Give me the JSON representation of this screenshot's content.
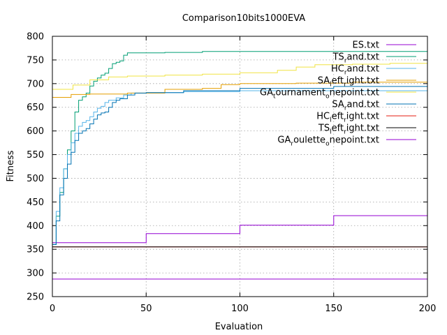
{
  "chart_data": {
    "type": "line",
    "title": "Comparison10bits1000EVA",
    "xlabel": "Evaluation",
    "ylabel": "Fitness",
    "xlim": [
      0,
      200
    ],
    "ylim": [
      250,
      800
    ],
    "xticks": [
      0,
      50,
      100,
      150,
      200
    ],
    "yticks": [
      250,
      300,
      350,
      400,
      450,
      500,
      550,
      600,
      650,
      700,
      750,
      800
    ],
    "grid": true,
    "legend_position": "top-right",
    "series": [
      {
        "name": "ES.txt",
        "color": "#9400d3",
        "points": [
          [
            0,
            364
          ],
          [
            50,
            383
          ],
          [
            100,
            401
          ],
          [
            150,
            421
          ],
          [
            200,
            441
          ]
        ]
      },
      {
        "name": "TS_rand.txt",
        "color": "#009e73",
        "points": [
          [
            0,
            360
          ],
          [
            2,
            420
          ],
          [
            4,
            470
          ],
          [
            6,
            520
          ],
          [
            8,
            560
          ],
          [
            10,
            600
          ],
          [
            12,
            640
          ],
          [
            14,
            665
          ],
          [
            16,
            672
          ],
          [
            18,
            680
          ],
          [
            20,
            695
          ],
          [
            22,
            705
          ],
          [
            24,
            712
          ],
          [
            26,
            718
          ],
          [
            28,
            722
          ],
          [
            30,
            732
          ],
          [
            32,
            742
          ],
          [
            34,
            745
          ],
          [
            36,
            748
          ],
          [
            38,
            760
          ],
          [
            40,
            765
          ],
          [
            60,
            766
          ],
          [
            80,
            768
          ],
          [
            200,
            768
          ]
        ]
      },
      {
        "name": "HC_rand.txt",
        "color": "#56b4e9",
        "points": [
          [
            0,
            360
          ],
          [
            2,
            430
          ],
          [
            4,
            480
          ],
          [
            6,
            520
          ],
          [
            8,
            550
          ],
          [
            10,
            575
          ],
          [
            12,
            595
          ],
          [
            14,
            610
          ],
          [
            16,
            618
          ],
          [
            18,
            622
          ],
          [
            20,
            630
          ],
          [
            22,
            640
          ],
          [
            24,
            648
          ],
          [
            26,
            652
          ],
          [
            28,
            660
          ],
          [
            30,
            665
          ],
          [
            34,
            670
          ],
          [
            38,
            676
          ],
          [
            42,
            680
          ],
          [
            50,
            681
          ],
          [
            70,
            683
          ],
          [
            100,
            685
          ],
          [
            200,
            686
          ]
        ]
      },
      {
        "name": "SA_left_right.txt",
        "color": "#e69f00",
        "points": [
          [
            0,
            671
          ],
          [
            5,
            671
          ],
          [
            10,
            677
          ],
          [
            20,
            678
          ],
          [
            30,
            678
          ],
          [
            40,
            680
          ],
          [
            50,
            680
          ],
          [
            60,
            688
          ],
          [
            70,
            688
          ],
          [
            80,
            690
          ],
          [
            90,
            698
          ],
          [
            100,
            700
          ],
          [
            130,
            701
          ],
          [
            160,
            703
          ],
          [
            200,
            707
          ]
        ]
      },
      {
        "name": "GA_tournament_onepoint.txt",
        "color": "#f0e442",
        "points": [
          [
            0,
            688
          ],
          [
            10,
            688
          ],
          [
            11,
            697
          ],
          [
            20,
            708
          ],
          [
            30,
            714
          ],
          [
            40,
            716
          ],
          [
            60,
            718
          ],
          [
            80,
            720
          ],
          [
            100,
            723
          ],
          [
            120,
            728
          ],
          [
            130,
            735
          ],
          [
            140,
            740
          ],
          [
            160,
            741
          ],
          [
            180,
            743
          ],
          [
            200,
            746
          ]
        ]
      },
      {
        "name": "SA_rand.txt",
        "color": "#0072b2",
        "points": [
          [
            0,
            360
          ],
          [
            2,
            410
          ],
          [
            4,
            465
          ],
          [
            6,
            500
          ],
          [
            8,
            530
          ],
          [
            10,
            555
          ],
          [
            12,
            580
          ],
          [
            14,
            595
          ],
          [
            16,
            600
          ],
          [
            18,
            605
          ],
          [
            20,
            615
          ],
          [
            22,
            625
          ],
          [
            24,
            634
          ],
          [
            26,
            638
          ],
          [
            28,
            640
          ],
          [
            30,
            650
          ],
          [
            32,
            660
          ],
          [
            34,
            665
          ],
          [
            36,
            668
          ],
          [
            40,
            676
          ],
          [
            44,
            680
          ],
          [
            50,
            681
          ],
          [
            70,
            685
          ],
          [
            100,
            690
          ],
          [
            150,
            694
          ],
          [
            200,
            694
          ]
        ]
      },
      {
        "name": "HC_left_right.txt",
        "color": "#e51e10",
        "points": [
          [
            0,
            355
          ],
          [
            200,
            355
          ]
        ]
      },
      {
        "name": "TS_left_right.txt",
        "color": "#000000",
        "points": [
          [
            0,
            355
          ],
          [
            200,
            355
          ]
        ]
      },
      {
        "name": "GA_roulette_onepoint.txt",
        "color": "#9400d3",
        "points": [
          [
            0,
            287
          ],
          [
            200,
            287
          ]
        ]
      }
    ],
    "legend_labels": [
      {
        "text": "ES.txt"
      },
      {
        "base": "TS",
        "sub": "r",
        "rest": "and.txt"
      },
      {
        "base": "HC",
        "sub": "r",
        "rest": "and.txt"
      },
      {
        "base": "SA",
        "sub": "l",
        "rest": "eft",
        "sub2": "r",
        "rest2": "ight.txt"
      },
      {
        "base": "GA",
        "sub": "t",
        "rest": "ournament",
        "sub2": "o",
        "rest2": "nepoint.txt"
      },
      {
        "base": "SA",
        "sub": "r",
        "rest": "and.txt"
      },
      {
        "base": "HC",
        "sub": "l",
        "rest": "eft",
        "sub2": "r",
        "rest2": "ight.txt"
      },
      {
        "base": "TS",
        "sub": "l",
        "rest": "eft",
        "sub2": "r",
        "rest2": "ight.txt"
      },
      {
        "base": "GA",
        "sub": "r",
        "rest": "oulette",
        "sub2": "o",
        "rest2": "nepoint.txt"
      }
    ]
  }
}
